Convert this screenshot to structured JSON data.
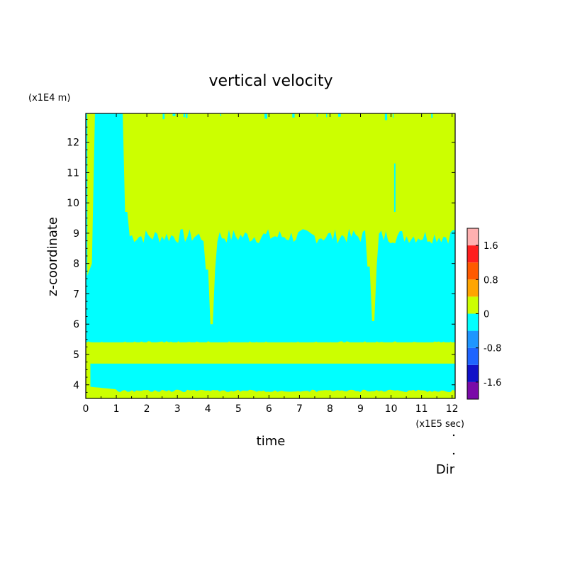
{
  "chart_data": {
    "type": "heatmap",
    "title": "vertical velocity",
    "xlabel": "time",
    "ylabel": "z-coordinate",
    "x_unit": "(x1E5 sec)",
    "y_unit": "(x1E4 m)",
    "footer": "Dir",
    "xlim": [
      0,
      12.1
    ],
    "ylim": [
      3.55,
      12.95
    ],
    "x_ticks": [
      "0",
      "1",
      "2",
      "3",
      "4",
      "5",
      "6",
      "7",
      "8",
      "9",
      "10",
      "11",
      "12"
    ],
    "y_ticks": [
      "4",
      "5",
      "6",
      "7",
      "8",
      "9",
      "10",
      "11",
      "12"
    ],
    "colorbar": {
      "levels": [
        -2.0,
        -1.6,
        -1.2,
        -0.8,
        -0.4,
        0,
        0.4,
        0.8,
        1.2,
        1.6,
        2.0
      ],
      "colors": [
        "#7a0aa8",
        "#1010c8",
        "#1e64ff",
        "#1e96ff",
        "#00ffff",
        "#ccff00",
        "#ffa500",
        "#ff5a00",
        "#ff1e1e",
        "#ffb0b0"
      ],
      "tick_labels": [
        "-1.6",
        "-0.8",
        "0",
        "0.8",
        "1.6"
      ],
      "tick_values": [
        -1.6,
        -0.8,
        0,
        0.8,
        1.6
      ]
    },
    "regions": {
      "positive_color": "#ccff00",
      "negative_color": "#00ffff",
      "bottom_positive_band": [
        3.55,
        3.8
      ],
      "lower_negative_band": [
        3.8,
        4.7
      ],
      "middle_positive_band": [
        4.7,
        5.4
      ],
      "main_negative_region_top": 9.0,
      "upper_positive_region": [
        9.0,
        12.95
      ],
      "initial_negative_column_end_time": 1.25
    }
  }
}
